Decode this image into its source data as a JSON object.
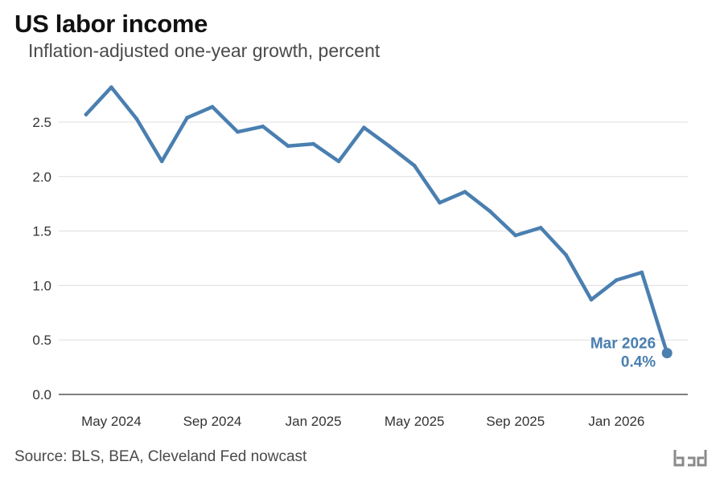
{
  "header": {
    "title": "US labor income",
    "subtitle": "Inflation-adjusted one-year growth, percent"
  },
  "footer": {
    "source": "Source: BLS, BEA, Cleveland Fed nowcast"
  },
  "colors": {
    "line": "#4a7fb0",
    "grid": "#dddddd",
    "axis": "#555555",
    "tick_text": "#333333"
  },
  "chart_data": {
    "type": "line",
    "title": "US labor income",
    "subtitle": "Inflation-adjusted one-year growth, percent",
    "xlabel": "",
    "ylabel": "",
    "ylim": [
      0,
      2.8
    ],
    "yticks": [
      0.0,
      0.5,
      1.0,
      1.5,
      2.0,
      2.5
    ],
    "ytick_labels": [
      "0.0",
      "0.5",
      "1.0",
      "1.5",
      "2.0",
      "2.5"
    ],
    "xticks": [
      {
        "x": "2024-05",
        "label": "May 2024"
      },
      {
        "x": "2024-09",
        "label": "Sep 2024"
      },
      {
        "x": "2025-01",
        "label": "Jan 2025"
      },
      {
        "x": "2025-05",
        "label": "May 2025"
      },
      {
        "x": "2025-09",
        "label": "Sep 2025"
      },
      {
        "x": "2026-01",
        "label": "Jan 2026"
      }
    ],
    "grid": true,
    "series": [
      {
        "x": [
          "2024-04",
          "2024-05",
          "2024-06",
          "2024-07",
          "2024-08",
          "2024-09",
          "2024-10",
          "2024-11",
          "2024-12",
          "2025-01",
          "2025-02",
          "2025-03",
          "2025-04",
          "2025-05",
          "2025-06",
          "2025-07",
          "2025-08",
          "2025-09",
          "2025-10",
          "2025-11",
          "2025-12",
          "2026-01",
          "2026-02",
          "2026-03"
        ],
        "values": [
          2.57,
          2.82,
          2.53,
          2.14,
          2.54,
          2.64,
          2.41,
          2.46,
          2.28,
          2.3,
          2.14,
          2.45,
          2.28,
          2.1,
          1.76,
          1.86,
          1.68,
          1.46,
          1.53,
          1.28,
          0.87,
          1.05,
          1.12,
          0.38
        ]
      }
    ],
    "annotation": {
      "label": "Mar 2026",
      "value_label": "0.4%",
      "x": "2026-03",
      "y": 0.38
    }
  }
}
